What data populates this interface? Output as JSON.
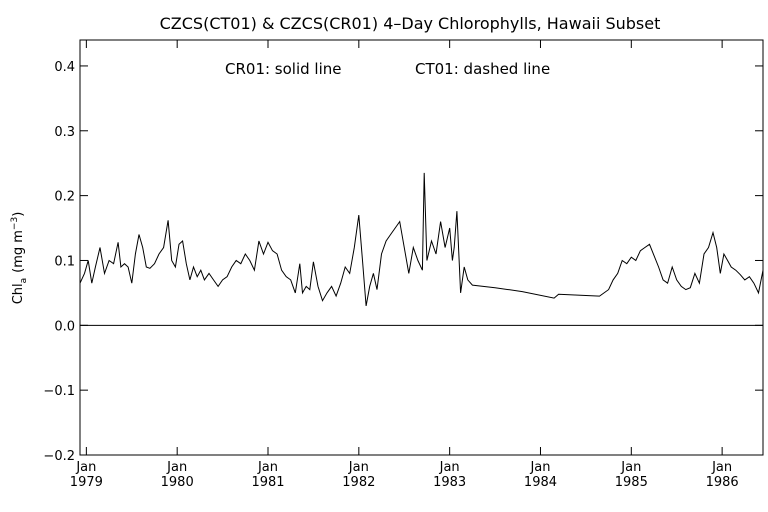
{
  "chart_data": {
    "type": "line",
    "title": "CZCS(CT01) & CZCS(CR01) 4–Day Chlorophylls, Hawaii Subset",
    "annotation_left": "CR01: solid line",
    "annotation_right": "CT01: dashed line",
    "ylabel_main": "Chl",
    "ylabel_sub": "a",
    "ylabel_units": "(mg m",
    "ylabel_sup": "−3",
    "ylabel_close": ")",
    "xlim": [
      1978.93,
      1986.45
    ],
    "ylim": [
      -0.2,
      0.44
    ],
    "yticks": [
      {
        "value": -0.2,
        "label": "−0.2"
      },
      {
        "value": -0.1,
        "label": "−0.1"
      },
      {
        "value": 0.0,
        "label": "0.0"
      },
      {
        "value": 0.1,
        "label": "0.1"
      },
      {
        "value": 0.2,
        "label": "0.2"
      },
      {
        "value": 0.3,
        "label": "0.3"
      },
      {
        "value": 0.4,
        "label": "0.4"
      }
    ],
    "xticks": [
      {
        "value": 1979,
        "month": "Jan",
        "year": "1979"
      },
      {
        "value": 1980,
        "month": "Jan",
        "year": "1980"
      },
      {
        "value": 1981,
        "month": "Jan",
        "year": "1981"
      },
      {
        "value": 1982,
        "month": "Jan",
        "year": "1982"
      },
      {
        "value": 1983,
        "month": "Jan",
        "year": "1983"
      },
      {
        "value": 1984,
        "month": "Jan",
        "year": "1984"
      },
      {
        "value": 1985,
        "month": "Jan",
        "year": "1985"
      },
      {
        "value": 1986,
        "month": "Jan",
        "year": "1986"
      }
    ],
    "zero_line": 0.0,
    "series": [
      {
        "style": "solid",
        "x": [
          1978.93,
          1978.98,
          1979.02,
          1979.06,
          1979.1,
          1979.15,
          1979.2,
          1979.25,
          1979.3,
          1979.35,
          1979.38,
          1979.42,
          1979.46,
          1979.5,
          1979.54,
          1979.58,
          1979.62,
          1979.66,
          1979.7,
          1979.75,
          1979.8,
          1979.85,
          1979.9,
          1979.94,
          1979.98,
          1980.02,
          1980.06,
          1980.1,
          1980.14,
          1980.18,
          1980.22,
          1980.26,
          1980.3,
          1980.35,
          1980.4,
          1980.45,
          1980.5,
          1980.55,
          1980.6,
          1980.65,
          1980.7,
          1980.75,
          1980.8,
          1980.85,
          1980.9,
          1980.95,
          1981.0,
          1981.05,
          1981.1,
          1981.15,
          1981.2,
          1981.25,
          1981.3,
          1981.35,
          1981.38,
          1981.42,
          1981.46,
          1981.5,
          1981.55,
          1981.6,
          1981.65,
          1981.7,
          1981.75,
          1981.8,
          1981.85,
          1981.9,
          1981.95,
          1982.0,
          1982.04,
          1982.08,
          1982.12,
          1982.16,
          1982.2,
          1982.25,
          1982.3,
          1982.35,
          1982.45,
          1982.55,
          1982.6,
          1982.65,
          1982.7,
          1982.72,
          1982.75,
          1982.8,
          1982.85,
          1982.9,
          1982.95,
          1983.0,
          1983.03,
          1983.05,
          1983.08,
          1983.12,
          1983.16,
          1983.2,
          1983.25,
          1983.5,
          1983.8,
          1984.15,
          1984.2,
          1984.5,
          1984.65,
          1984.75,
          1984.8,
          1984.85,
          1984.9,
          1984.95,
          1985.0,
          1985.05,
          1985.1,
          1985.15,
          1985.2,
          1985.3,
          1985.35,
          1985.4,
          1985.45,
          1985.5,
          1985.55,
          1985.6,
          1985.65,
          1985.7,
          1985.75,
          1985.8,
          1985.85,
          1985.9,
          1985.94,
          1985.98,
          1986.02,
          1986.06,
          1986.1,
          1986.15,
          1986.2,
          1986.25,
          1986.3,
          1986.35,
          1986.4,
          1986.45
        ],
        "y": [
          0.065,
          0.08,
          0.1,
          0.065,
          0.09,
          0.12,
          0.08,
          0.1,
          0.095,
          0.128,
          0.09,
          0.095,
          0.09,
          0.065,
          0.11,
          0.14,
          0.12,
          0.09,
          0.088,
          0.095,
          0.11,
          0.12,
          0.162,
          0.1,
          0.09,
          0.125,
          0.13,
          0.095,
          0.07,
          0.09,
          0.075,
          0.085,
          0.07,
          0.08,
          0.07,
          0.06,
          0.07,
          0.075,
          0.09,
          0.1,
          0.095,
          0.11,
          0.1,
          0.085,
          0.13,
          0.11,
          0.128,
          0.115,
          0.11,
          0.085,
          0.075,
          0.07,
          0.05,
          0.095,
          0.05,
          0.06,
          0.055,
          0.098,
          0.06,
          0.038,
          0.05,
          0.06,
          0.045,
          0.065,
          0.09,
          0.08,
          0.12,
          0.17,
          0.1,
          0.03,
          0.06,
          0.08,
          0.055,
          0.11,
          0.13,
          0.14,
          0.16,
          0.08,
          0.12,
          0.1,
          0.085,
          0.235,
          0.1,
          0.13,
          0.11,
          0.16,
          0.12,
          0.15,
          0.1,
          0.12,
          0.176,
          0.05,
          0.09,
          0.07,
          0.062,
          0.058,
          0.052,
          0.042,
          0.048,
          0.046,
          0.045,
          0.055,
          0.07,
          0.08,
          0.1,
          0.095,
          0.105,
          0.1,
          0.115,
          0.12,
          0.125,
          0.09,
          0.07,
          0.065,
          0.09,
          0.07,
          0.06,
          0.055,
          0.058,
          0.08,
          0.065,
          0.11,
          0.12,
          0.143,
          0.12,
          0.08,
          0.11,
          0.1,
          0.09,
          0.085,
          0.078,
          0.07,
          0.075,
          0.065,
          0.05,
          0.085
        ]
      }
    ]
  }
}
